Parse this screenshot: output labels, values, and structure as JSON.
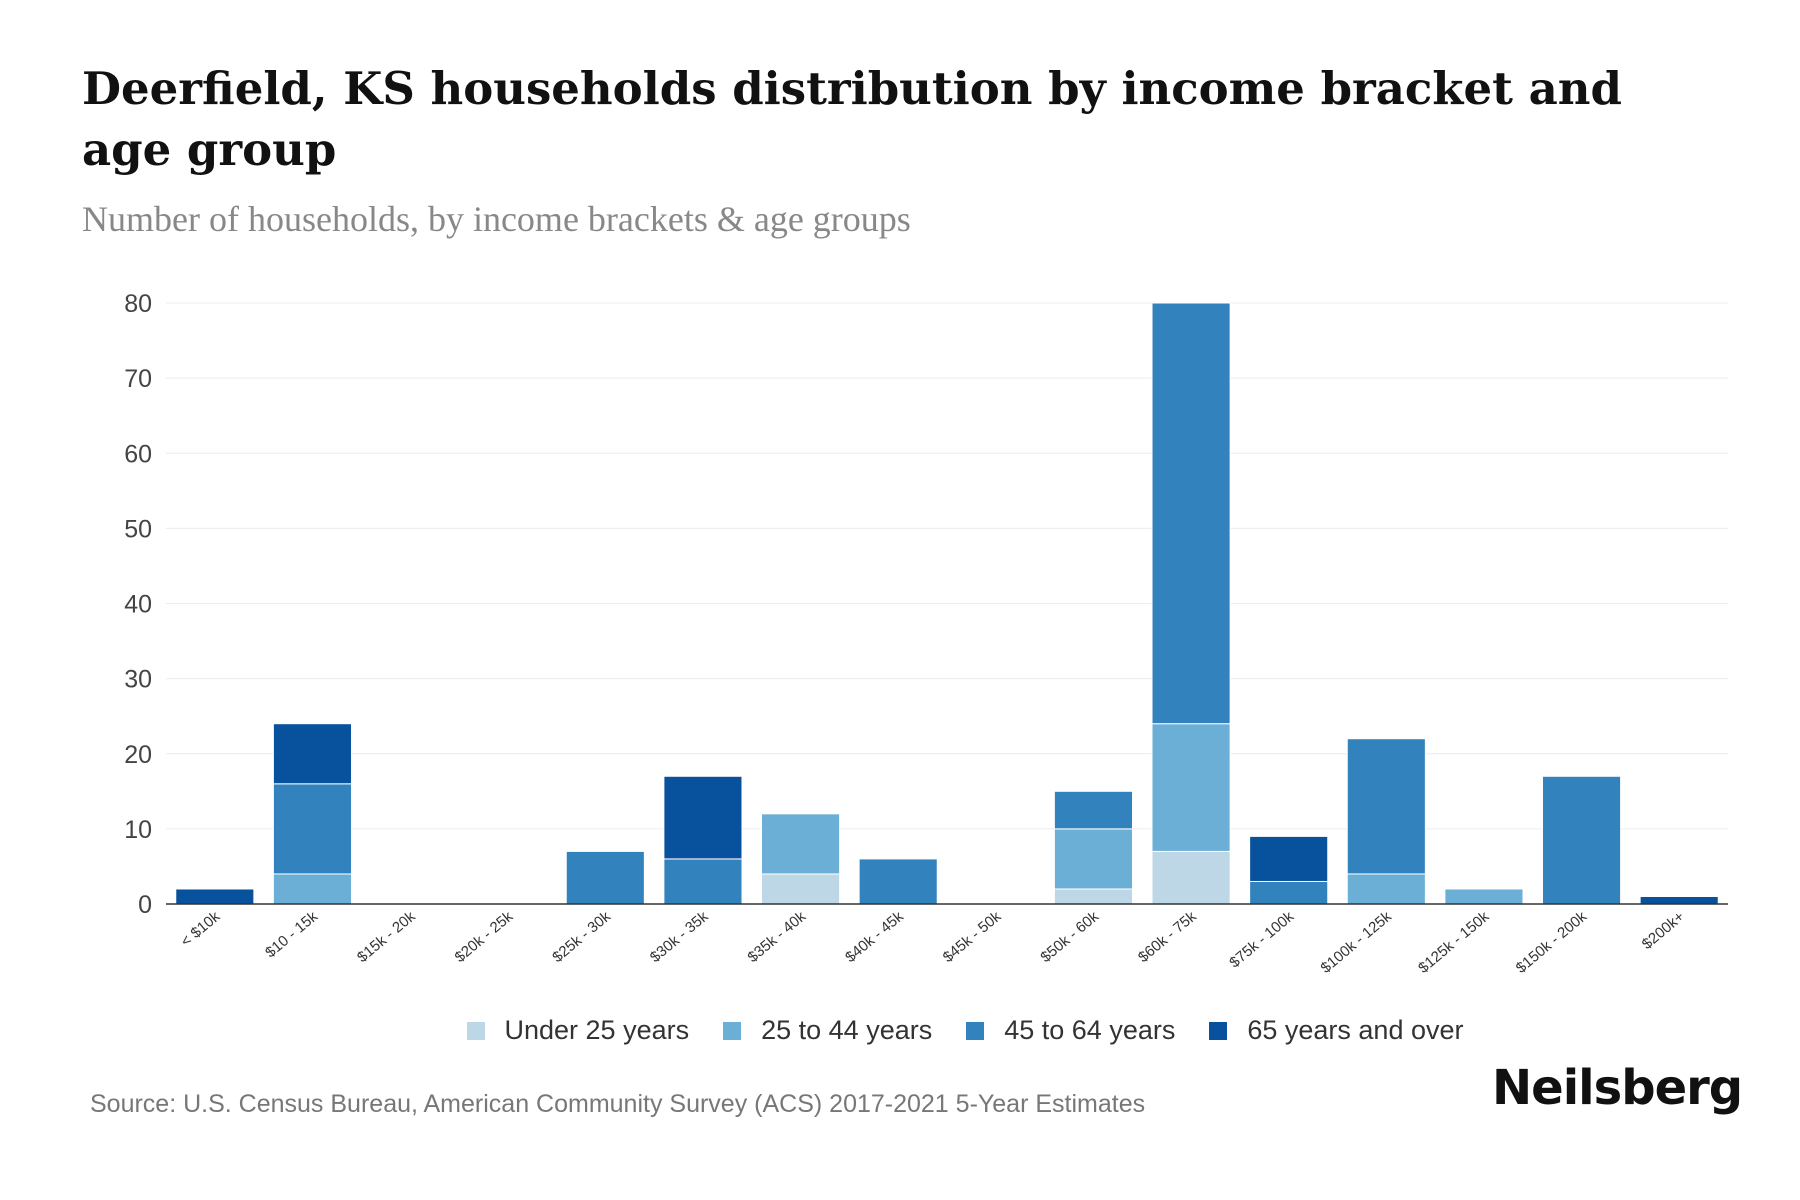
{
  "title": "Deerfield, KS households distribution by income bracket and age group",
  "subtitle": "Number of households, by income brackets & age groups",
  "source": "Source: U.S. Census Bureau, American Community Survey (ACS) 2017-2021 5-Year Estimates",
  "brand": "Neilsberg",
  "chart_data": {
    "type": "bar",
    "stacked": true,
    "title": "Deerfield, KS households distribution by income bracket and age group",
    "xlabel": "",
    "ylabel": "",
    "ylim": [
      0,
      80
    ],
    "yticks": [
      0,
      10,
      20,
      30,
      40,
      50,
      60,
      70,
      80
    ],
    "grid": true,
    "legend_position": "bottom",
    "categories": [
      "< $10k",
      "$10 - 15k",
      "$15k - 20k",
      "$20k - 25k",
      "$25k - 30k",
      "$30k - 35k",
      "$35k - 40k",
      "$40k - 45k",
      "$45k - 50k",
      "$50k - 60k",
      "$60k - 75k",
      "$75k - 100k",
      "$100k - 125k",
      "$125k - 150k",
      "$150k - 200k",
      "$200k+"
    ],
    "series": [
      {
        "name": "Under 25 years",
        "color": "#bdd7e7",
        "values": [
          0,
          0,
          0,
          0,
          0,
          0,
          4,
          0,
          0,
          2,
          7,
          0,
          0,
          0,
          0,
          0
        ]
      },
      {
        "name": "25 to 44 years",
        "color": "#6baed6",
        "values": [
          0,
          4,
          0,
          0,
          0,
          0,
          8,
          0,
          0,
          8,
          17,
          0,
          4,
          2,
          0,
          0
        ]
      },
      {
        "name": "45 to 64 years",
        "color": "#3182bd",
        "values": [
          0,
          12,
          0,
          0,
          7,
          6,
          0,
          6,
          0,
          5,
          56,
          3,
          18,
          0,
          17,
          0
        ]
      },
      {
        "name": "65 years and over",
        "color": "#08519c",
        "values": [
          2,
          8,
          0,
          0,
          0,
          11,
          0,
          0,
          0,
          0,
          0,
          6,
          0,
          0,
          0,
          1
        ]
      }
    ]
  }
}
